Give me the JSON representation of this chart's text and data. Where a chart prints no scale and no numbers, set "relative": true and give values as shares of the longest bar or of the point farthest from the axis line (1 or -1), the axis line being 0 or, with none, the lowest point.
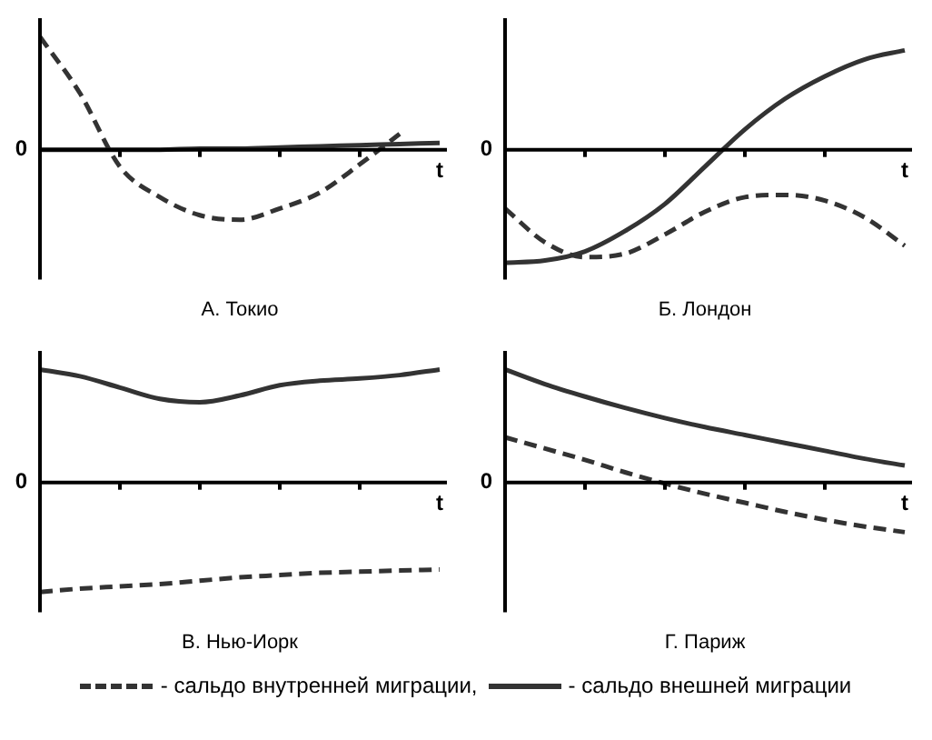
{
  "chart_data": [
    {
      "type": "line",
      "title": "А. Токио",
      "xlabel": "t",
      "annotations": [
        "0"
      ],
      "relative": true,
      "categories": [
        null,
        null,
        null,
        null,
        null,
        null,
        null,
        null,
        null,
        null,
        null
      ],
      "series": [
        {
          "color": "#333333",
          "line_style": "dashed",
          "values": [
            1,
            0.5,
            -0.15,
            -0.42,
            -0.58,
            -0.62,
            -0.52,
            -0.38,
            -0.13,
            0.14,
            null
          ]
        },
        {
          "color": "#333333",
          "line_style": "solid",
          "values": [
            0,
            0,
            0,
            0,
            0.01,
            0.01,
            0.02,
            0.03,
            0.04,
            0.05,
            0.06
          ]
        }
      ]
    },
    {
      "type": "line",
      "title": "Б. Лондон",
      "xlabel": "t",
      "annotations": [
        "0"
      ],
      "relative": true,
      "categories": [
        null,
        null,
        null,
        null,
        null,
        null,
        null,
        null,
        null,
        null,
        null
      ],
      "series": [
        {
          "color": "#333333",
          "line_style": "dashed",
          "values": [
            -0.52,
            -0.82,
            -0.95,
            -0.92,
            -0.75,
            -0.55,
            -0.42,
            -0.4,
            -0.45,
            -0.6,
            -0.85
          ]
        },
        {
          "color": "#333333",
          "line_style": "solid",
          "values": [
            -1,
            -0.98,
            -0.9,
            -0.72,
            -0.48,
            -0.15,
            0.18,
            0.45,
            0.65,
            0.8,
            0.88
          ]
        }
      ]
    },
    {
      "type": "line",
      "title": "В. Нью-Иорк",
      "xlabel": "t",
      "annotations": [
        "0"
      ],
      "relative": true,
      "categories": [
        null,
        null,
        null,
        null,
        null,
        null,
        null,
        null,
        null,
        null,
        null
      ],
      "series": [
        {
          "color": "#333333",
          "line_style": "dashed",
          "values": [
            -0.97,
            -0.94,
            -0.92,
            -0.9,
            -0.87,
            -0.84,
            -0.82,
            -0.8,
            -0.79,
            -0.78,
            -0.77
          ]
        },
        {
          "color": "#333333",
          "line_style": "solid",
          "values": [
            1,
            0.94,
            0.84,
            0.74,
            0.71,
            0.77,
            0.86,
            0.9,
            0.92,
            0.95,
            1
          ]
        }
      ]
    },
    {
      "type": "line",
      "title": "Г. Париж",
      "xlabel": "t",
      "annotations": [
        "0"
      ],
      "relative": true,
      "legend": "bottom",
      "categories": [
        null,
        null,
        null,
        null,
        null,
        null,
        null,
        null,
        null,
        null,
        null
      ],
      "series": [
        {
          "name": "- сальдо внутренней миграции,",
          "color": "#333333",
          "line_style": "dashed",
          "values": [
            0.4,
            0.3,
            0.2,
            0.09,
            -0.01,
            -0.1,
            -0.18,
            -0.26,
            -0.33,
            -0.39,
            -0.44
          ]
        },
        {
          "name": "- сальдо внешней миграции",
          "color": "#333333",
          "line_style": "solid",
          "values": [
            1,
            0.87,
            0.76,
            0.66,
            0.57,
            0.49,
            0.42,
            0.35,
            0.28,
            0.21,
            0.15
          ]
        }
      ]
    }
  ]
}
